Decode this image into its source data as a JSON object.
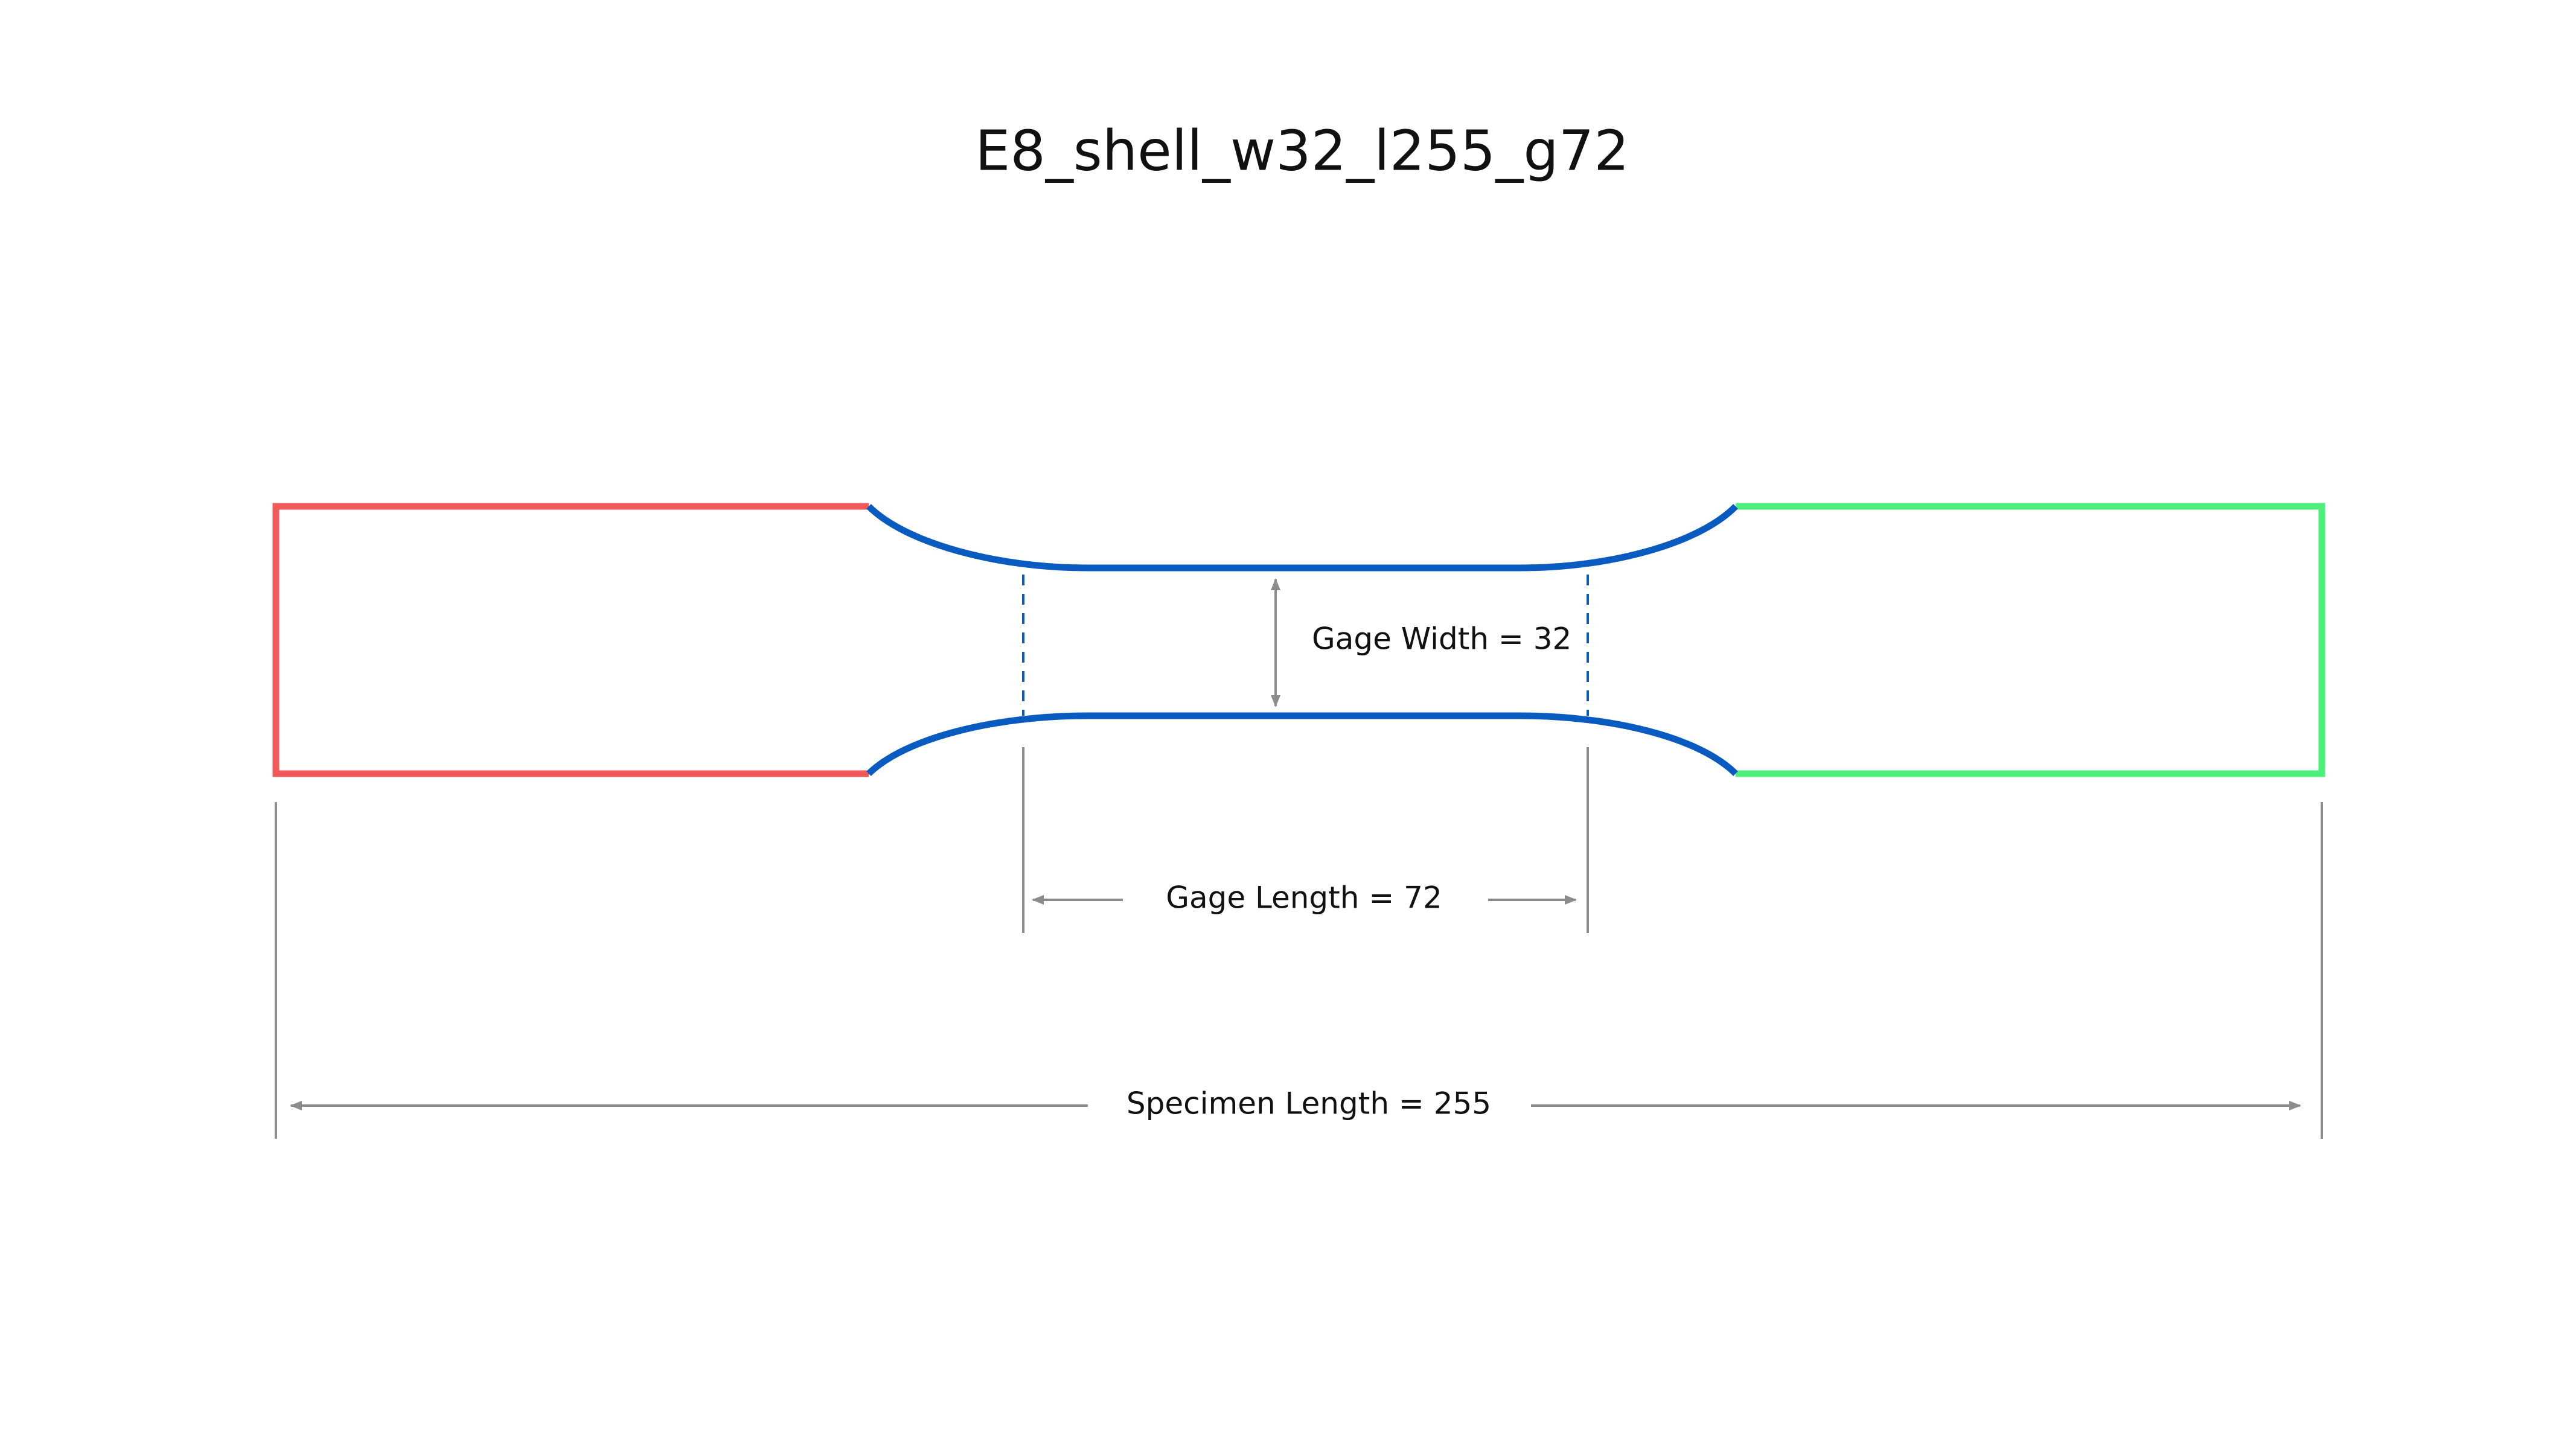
{
  "title": "E8_shell_w32_l255_g72",
  "annotations": {
    "gage_width": "Gage Width = 32",
    "gage_length": "Gage Length = 72",
    "specimen_length": "Specimen Length = 255"
  }
}
